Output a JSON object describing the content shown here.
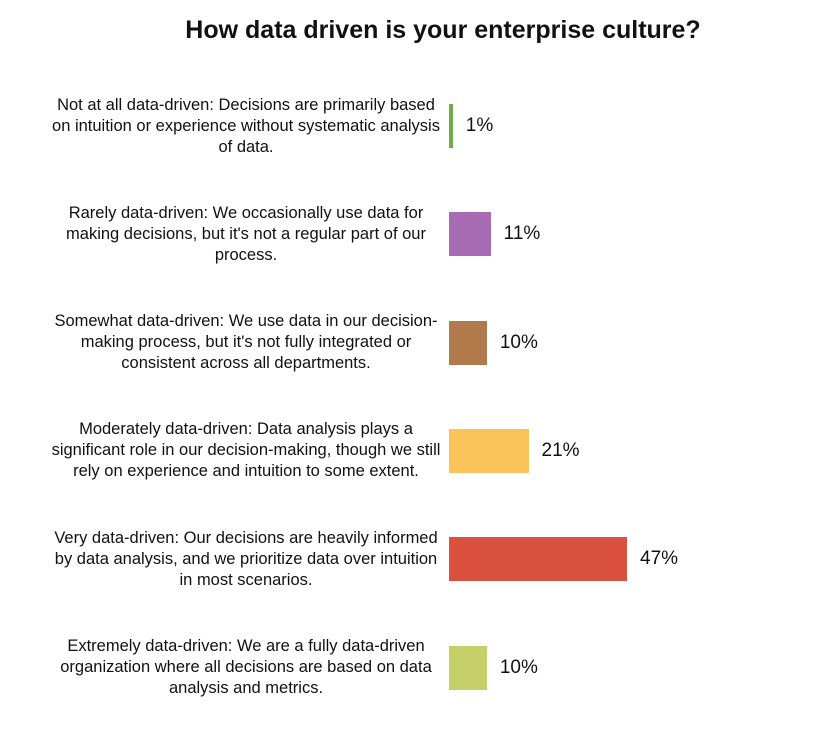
{
  "chart_data": {
    "type": "bar",
    "orientation": "horizontal",
    "title": "How data driven is your enterprise culture?",
    "categories": [
      "Not at all data-driven: Decisions are primarily based on intuition or experience without systematic analysis of data.",
      "Rarely data-driven: We occasionally use data for making decisions, but it's not a regular part of our process.",
      "Somewhat data-driven: We use data in our decision-making process, but it's not fully integrated or consistent across all departments.",
      "Moderately data-driven: Data analysis plays a significant role in our decision-making, though we still rely on experience and intuition to some extent.",
      "Very data-driven: Our decisions are heavily informed by data analysis, and we prioritize data over intuition in most scenarios.",
      "Extremely data-driven: We are a fully data-driven organization where all decisions are based on data analysis and metrics."
    ],
    "values": [
      1,
      11,
      10,
      21,
      47,
      10
    ],
    "value_labels": [
      "1%",
      "11%",
      "10%",
      "21%",
      "47%",
      "10%"
    ],
    "colors": [
      "#70ad47",
      "#a86cb5",
      "#b07a4a",
      "#f9c55a",
      "#d9503e",
      "#c5cf6a"
    ]
  }
}
